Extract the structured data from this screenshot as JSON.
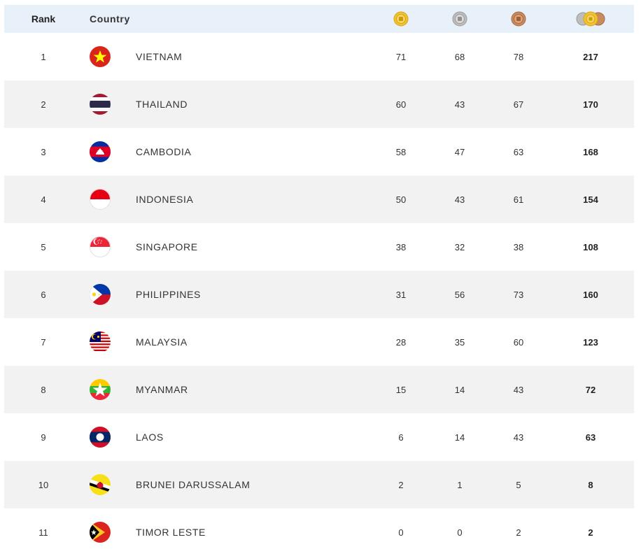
{
  "header": {
    "rank_label": "Rank",
    "country_label": "Country",
    "gold_icon": "gold-medal-icon",
    "silver_icon": "silver-medal-icon",
    "bronze_icon": "bronze-medal-icon",
    "total_icon": "total-medals-icon"
  },
  "colors": {
    "header_bg": "#e8f0fa",
    "alt_row_bg": "#f2f2f2",
    "gold": "#f2c230",
    "silver": "#bdbdbd",
    "bronze": "#c98a5e"
  },
  "rows": [
    {
      "rank": "1",
      "country": "VIETNAM",
      "flag": "vietnam-flag-icon",
      "gold": "71",
      "silver": "68",
      "bronze": "78",
      "total": "217"
    },
    {
      "rank": "2",
      "country": "THAILAND",
      "flag": "thailand-flag-icon",
      "gold": "60",
      "silver": "43",
      "bronze": "67",
      "total": "170"
    },
    {
      "rank": "3",
      "country": "CAMBODIA",
      "flag": "cambodia-flag-icon",
      "gold": "58",
      "silver": "47",
      "bronze": "63",
      "total": "168"
    },
    {
      "rank": "4",
      "country": "INDONESIA",
      "flag": "indonesia-flag-icon",
      "gold": "50",
      "silver": "43",
      "bronze": "61",
      "total": "154"
    },
    {
      "rank": "5",
      "country": "SINGAPORE",
      "flag": "singapore-flag-icon",
      "gold": "38",
      "silver": "32",
      "bronze": "38",
      "total": "108"
    },
    {
      "rank": "6",
      "country": "PHILIPPINES",
      "flag": "philippines-flag-icon",
      "gold": "31",
      "silver": "56",
      "bronze": "73",
      "total": "160"
    },
    {
      "rank": "7",
      "country": "MALAYSIA",
      "flag": "malaysia-flag-icon",
      "gold": "28",
      "silver": "35",
      "bronze": "60",
      "total": "123"
    },
    {
      "rank": "8",
      "country": "MYANMAR",
      "flag": "myanmar-flag-icon",
      "gold": "15",
      "silver": "14",
      "bronze": "43",
      "total": "72"
    },
    {
      "rank": "9",
      "country": "LAOS",
      "flag": "laos-flag-icon",
      "gold": "6",
      "silver": "14",
      "bronze": "43",
      "total": "63"
    },
    {
      "rank": "10",
      "country": "BRUNEI DARUSSALAM",
      "flag": "brunei-flag-icon",
      "gold": "2",
      "silver": "1",
      "bronze": "5",
      "total": "8"
    },
    {
      "rank": "11",
      "country": "TIMOR LESTE",
      "flag": "timor-leste-flag-icon",
      "gold": "0",
      "silver": "0",
      "bronze": "2",
      "total": "2"
    }
  ]
}
